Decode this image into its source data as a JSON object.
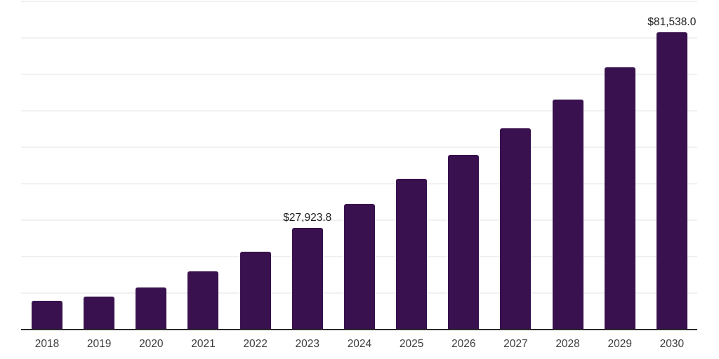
{
  "chart_data": {
    "type": "bar",
    "title": "",
    "xlabel": "",
    "ylabel": "",
    "categories": [
      "2018",
      "2019",
      "2020",
      "2021",
      "2022",
      "2023",
      "2024",
      "2025",
      "2026",
      "2027",
      "2028",
      "2029",
      "2030"
    ],
    "values": [
      7800,
      8950,
      11500,
      15900,
      21300,
      27923.8,
      34450,
      41300,
      47900,
      55100,
      63000,
      71950,
      81538.0
    ],
    "data_labels": [
      "",
      "",
      "",
      "",
      "",
      "$27,923.8",
      "",
      "",
      "",
      "",
      "",
      "",
      "$81,538.0"
    ],
    "ylim": [
      0,
      90000
    ],
    "gridline_step": 10000,
    "grid": "horizontal",
    "legend_position": "none",
    "colors": {
      "bar": "#38114E",
      "gridline": "#f1f1f1",
      "axis_line": "#2b2b2b",
      "tick_label_text": "#3d3d3d",
      "value_label_text": "#1c1c1c",
      "background": "#ffffff"
    }
  }
}
